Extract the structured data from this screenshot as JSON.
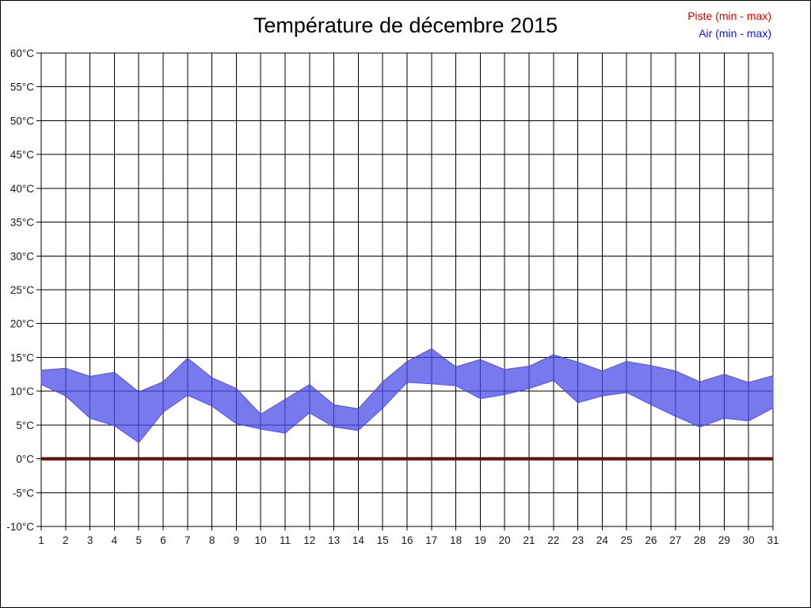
{
  "header": {
    "title": "Température de décembre 2015"
  },
  "legend": {
    "items": [
      {
        "label": "Piste (min - max)",
        "color": "#e00000"
      },
      {
        "label": "Air (min - max)",
        "color": "#1414e0"
      }
    ]
  },
  "chart_data": {
    "type": "area",
    "subtype": "min-max-range-band",
    "title": "Température de décembre 2015",
    "xlabel": "",
    "ylabel": "",
    "x": [
      1,
      2,
      3,
      4,
      5,
      6,
      7,
      8,
      9,
      10,
      11,
      12,
      13,
      14,
      15,
      16,
      17,
      18,
      19,
      20,
      21,
      22,
      23,
      24,
      25,
      26,
      27,
      28,
      29,
      30,
      31
    ],
    "ylim": [
      -10,
      60
    ],
    "y_tick_step": 5,
    "y_tick_suffix": "°C",
    "grid": true,
    "grid_color": "#000000",
    "legend_position": "top-right",
    "series": [
      {
        "name": "Piste (min - max)",
        "style": "line",
        "color": "#8b0f0f",
        "edge_color": "#200000",
        "min": [
          0,
          0,
          0,
          0,
          0,
          0,
          0,
          0,
          0,
          0,
          0,
          0,
          0,
          0,
          0,
          0,
          0,
          0,
          0,
          0,
          0,
          0,
          0,
          0,
          0,
          0,
          0,
          0,
          0,
          0,
          0
        ],
        "max": [
          0,
          0,
          0,
          0,
          0,
          0,
          0,
          0,
          0,
          0,
          0,
          0,
          0,
          0,
          0,
          0,
          0,
          0,
          0,
          0,
          0,
          0,
          0,
          0,
          0,
          0,
          0,
          0,
          0,
          0,
          0
        ]
      },
      {
        "name": "Air (min - max)",
        "style": "band",
        "color": "#4545e8",
        "opacity": 0.72,
        "min": [
          11.0,
          9.3,
          6.0,
          4.9,
          2.4,
          6.9,
          9.4,
          7.8,
          5.2,
          4.4,
          3.8,
          6.8,
          4.7,
          4.2,
          7.5,
          11.3,
          11.1,
          10.8,
          8.9,
          9.5,
          10.4,
          11.6,
          8.3,
          9.3,
          9.8,
          8.0,
          6.3,
          4.7,
          6.0,
          5.6,
          7.5
        ],
        "max": [
          13.1,
          13.4,
          12.2,
          12.8,
          9.9,
          11.4,
          14.9,
          12.0,
          10.4,
          6.6,
          8.8,
          11.0,
          8.0,
          7.4,
          11.4,
          14.4,
          16.3,
          13.6,
          14.7,
          13.2,
          13.7,
          15.4,
          14.3,
          13.0,
          14.4,
          13.8,
          13.0,
          11.4,
          12.5,
          11.3,
          12.3
        ]
      }
    ]
  }
}
